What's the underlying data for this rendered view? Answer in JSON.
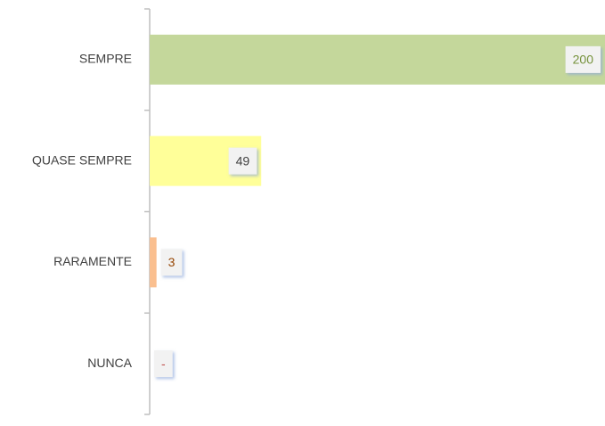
{
  "chart_data": {
    "type": "bar",
    "orientation": "horizontal",
    "categories": [
      "SEMPRE",
      "QUASE SEMPRE",
      "RARAMENTE",
      "NUNCA"
    ],
    "values": [
      200,
      49,
      3,
      0
    ],
    "value_labels": [
      "200",
      "49",
      "3",
      "-"
    ],
    "colors": [
      "#c4d79b",
      "#ffff99",
      "#fabf8f",
      "#f2a0a0"
    ],
    "label_colors": [
      "#76923c",
      "#404040",
      "#974706",
      "#c0504d"
    ]
  }
}
